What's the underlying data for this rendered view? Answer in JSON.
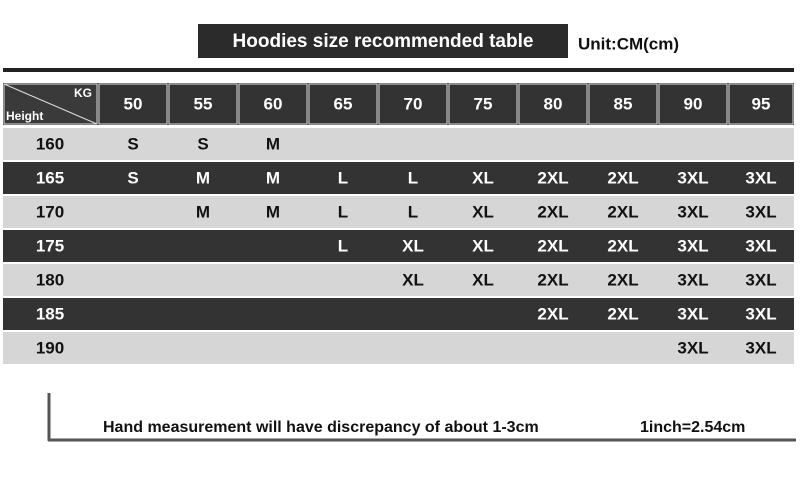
{
  "header": {
    "title": "Hoodies size recommended table",
    "unit": "Unit:CM(cm)"
  },
  "table": {
    "corner_top": "KG",
    "corner_bottom": "Height",
    "columns": [
      "50",
      "55",
      "60",
      "65",
      "70",
      "75",
      "80",
      "85",
      "90",
      "95"
    ],
    "rows": [
      {
        "height": "160",
        "sizes": [
          "S",
          "S",
          "M",
          null,
          null,
          null,
          null,
          null,
          null,
          null
        ]
      },
      {
        "height": "165",
        "sizes": [
          "S",
          "M",
          "M",
          "L",
          "L",
          "XL",
          "2XL",
          "2XL",
          "3XL",
          "3XL"
        ]
      },
      {
        "height": "170",
        "sizes": [
          null,
          "M",
          "M",
          "L",
          "L",
          "XL",
          "2XL",
          "2XL",
          "3XL",
          "3XL"
        ]
      },
      {
        "height": "175",
        "sizes": [
          null,
          null,
          null,
          "L",
          "XL",
          "XL",
          "2XL",
          "2XL",
          "3XL",
          "3XL"
        ]
      },
      {
        "height": "180",
        "sizes": [
          null,
          null,
          null,
          null,
          "XL",
          "XL",
          "2XL",
          "2XL",
          "3XL",
          "3XL"
        ]
      },
      {
        "height": "185",
        "sizes": [
          null,
          null,
          null,
          null,
          null,
          null,
          "2XL",
          "2XL",
          "3XL",
          "3XL"
        ]
      },
      {
        "height": "190",
        "sizes": [
          null,
          null,
          null,
          null,
          null,
          null,
          null,
          null,
          "3XL",
          "3XL"
        ]
      }
    ]
  },
  "footer": {
    "note": "Hand measurement will have discrepancy of about 1-3cm",
    "conversion": "1inch=2.54cm"
  }
}
